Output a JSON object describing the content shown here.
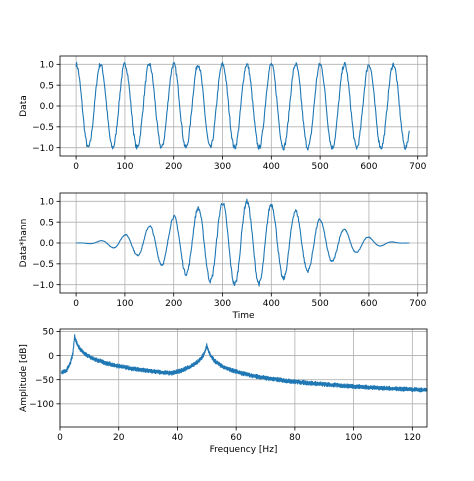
{
  "chart_data": [
    {
      "type": "line",
      "xlabel": "",
      "ylabel": "Data",
      "xlim": [
        -33,
        719
      ],
      "ylim": [
        -1.2,
        1.2
      ],
      "xticks": [
        0,
        100,
        200,
        300,
        400,
        500,
        600,
        700
      ],
      "yticks": [
        -1.0,
        -0.5,
        0.0,
        0.5,
        1.0
      ],
      "ytick_labels": [
        "−1.0",
        "−0.5",
        "0.0",
        "0.5",
        "1.0"
      ],
      "grid": true,
      "series": [
        {
          "signal": "cos",
          "period": 50,
          "amplitude": 1.0,
          "noise": 0.06,
          "x_start": 0,
          "x_end": 683
        }
      ],
      "color": "#1f77b4"
    },
    {
      "type": "line",
      "xlabel": "Time",
      "ylabel": "Data*hann",
      "xlim": [
        -33,
        719
      ],
      "ylim": [
        -1.2,
        1.2
      ],
      "xticks": [
        0,
        100,
        200,
        300,
        400,
        500,
        600,
        700
      ],
      "yticks": [
        -1.0,
        -0.5,
        0.0,
        0.5,
        1.0
      ],
      "ytick_labels": [
        "−1.0",
        "−0.5",
        "0.0",
        "0.5",
        "1.0"
      ],
      "grid": true,
      "series": [
        {
          "signal": "cos*hann",
          "period": 50,
          "amplitude": 1.0,
          "noise": 0.06,
          "x_start": 0,
          "x_end": 683
        }
      ],
      "color": "#1f77b4"
    },
    {
      "type": "line",
      "xlabel": "Frequency [Hz]",
      "ylabel": "Amplitude [dB]",
      "xlim": [
        0,
        125
      ],
      "ylim": [
        -148,
        55
      ],
      "xticks": [
        0,
        20,
        40,
        60,
        80,
        100,
        120
      ],
      "yticks": [
        -100,
        -50,
        0,
        50
      ],
      "ytick_labels": [
        "−100",
        "−50",
        "0",
        "50"
      ],
      "grid": true,
      "series": [
        {
          "signal": "spectrum",
          "peaks": [
            {
              "x": 5,
              "y": 44
            },
            {
              "x": 50,
              "y": 25
            }
          ],
          "x_start": 0.5,
          "x_end": 125,
          "y_at_start": -32,
          "min_near_x": 35,
          "min_value": -90,
          "y_at_end": -133
        }
      ],
      "color": "#1f77b4"
    }
  ]
}
